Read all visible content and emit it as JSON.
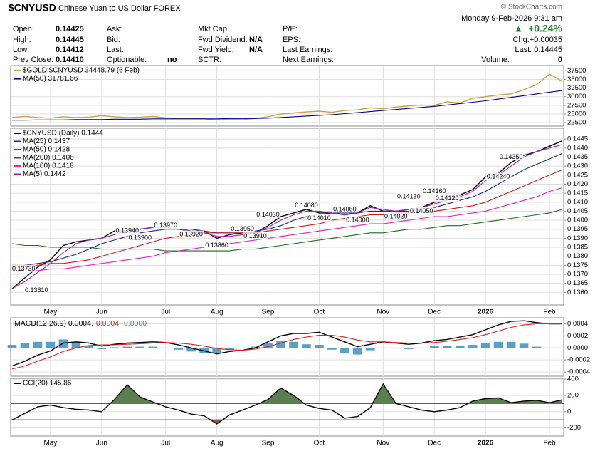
{
  "header": {
    "title": "$CNYUSD",
    "subtitle": "Chinese Yuan to US Dollar FOREX",
    "brand": "© StockCharts.com",
    "date": "Monday  9-Feb-2026  9:31 am",
    "change": "+0.24%",
    "chg": "Chg:+0.00035",
    "last": "Last: 0.14445",
    "volume_label": "Volume:",
    "volume": "0"
  },
  "quote_columns": [
    [
      {
        "label": "Open:",
        "value": "0.14425"
      },
      {
        "label": "High:",
        "value": "0.14445"
      },
      {
        "label": "Low:",
        "value": "0.14412"
      },
      {
        "label": "Prev Close:",
        "value": "0.14410"
      }
    ],
    [
      {
        "label": "Ask:"
      },
      {
        "label": "Bid:"
      },
      {
        "label": "Last:"
      },
      {
        "label": "Optionable:",
        "value": "no"
      }
    ],
    [
      {
        "label": "Mkt Cap:"
      },
      {
        "label": "Fwd Dividend:",
        "value": "N/A"
      },
      {
        "label": "Fwd Yield:",
        "value": "N/A"
      },
      {
        "label": "SCTR:"
      }
    ],
    [
      {
        "label": "P/E:"
      },
      {
        "label": "EPS:"
      },
      {
        "label": "Last Earnings:"
      },
      {
        "label": "Next Earnings:"
      }
    ]
  ],
  "chart_data": [
    {
      "type": "line",
      "grid": true,
      "ylim": [
        21500,
        39000
      ],
      "yticks": [
        37500,
        35000,
        32500,
        30000,
        27500,
        25000,
        22500
      ],
      "series": [
        {
          "name": "$GOLD:$CNYUSD 34448.79 (6 Feb)",
          "color": "#c9a042",
          "values": [
            24000,
            24300,
            24000,
            23800,
            24200,
            24000,
            24100,
            24500,
            24200,
            24000,
            24100,
            24300,
            23900,
            23700,
            23800,
            23600,
            23300,
            23500,
            23400,
            23700,
            24200,
            25000,
            25300,
            25600,
            25800,
            25500,
            26000,
            26200,
            26800,
            26500,
            27000,
            27300,
            27600,
            27500,
            28500,
            28200,
            29500,
            30000,
            30500,
            30800,
            32000,
            33500,
            36500,
            34448.79
          ]
        },
        {
          "name": "MA(50) 31781.66",
          "color": "#000080",
          "values": [
            23200,
            23200,
            23300,
            23300,
            23300,
            23400,
            23400,
            23400,
            23500,
            23500,
            23500,
            23600,
            23600,
            23600,
            23600,
            23600,
            23600,
            23700,
            23700,
            23700,
            23800,
            24000,
            24200,
            24400,
            24600,
            24800,
            25100,
            25400,
            25700,
            26000,
            26300,
            26600,
            26900,
            27200,
            27600,
            28000,
            28400,
            28800,
            29300,
            29800,
            30300,
            30800,
            31300,
            31781.66
          ]
        }
      ]
    },
    {
      "type": "line",
      "grid": true,
      "ylim": [
        0.1353,
        0.1451
      ],
      "categories": [
        null,
        null,
        null,
        "May",
        null,
        null,
        null,
        "Jun",
        null,
        null,
        null,
        null,
        "Jul",
        null,
        null,
        null,
        "Aug",
        null,
        null,
        null,
        "Sep",
        null,
        null,
        null,
        "Oct",
        null,
        null,
        null,
        null,
        "Nov",
        null,
        null,
        null,
        "Dec",
        null,
        null,
        null,
        "2026",
        null,
        null,
        null,
        null,
        "Feb",
        null
      ],
      "yticks": [
        {
          "value": 0.1445,
          "label": "0.1445"
        },
        {
          "value": 0.144,
          "label": "0.1440"
        },
        {
          "value": 0.1435,
          "label": "0.1435"
        },
        {
          "value": 0.143,
          "label": "0.1430"
        },
        {
          "value": 0.1425,
          "label": "0.1425"
        },
        {
          "value": 0.142,
          "label": "0.1420"
        },
        {
          "value": 0.1415,
          "label": "0.1415"
        },
        {
          "value": 0.141,
          "label": "0.1410"
        },
        {
          "value": 0.1405,
          "label": "0.1405"
        },
        {
          "value": 0.14,
          "label": "0.1400"
        },
        {
          "value": 0.1395,
          "label": "0.1395"
        },
        {
          "value": 0.139,
          "label": "0.1390"
        },
        {
          "value": 0.1385,
          "label": "0.1385"
        },
        {
          "value": 0.138,
          "label": "0.1380"
        },
        {
          "value": 0.1375,
          "label": "0.1375"
        },
        {
          "value": 0.137,
          "label": "0.1370"
        },
        {
          "value": 0.1365,
          "label": "0.1365"
        },
        {
          "value": 0.136,
          "label": "0.1360"
        }
      ],
      "series": [
        {
          "name": "$CNYUSD (Daily) 0.1444",
          "color": "#000000",
          "values": [
            0.1362,
            0.1368,
            0.1374,
            0.1378,
            0.1386,
            0.1388,
            0.1389,
            0.139,
            0.1394,
            0.1394,
            0.1395,
            0.1396,
            0.1396,
            0.1395,
            0.1394,
            0.1394,
            0.139,
            0.1392,
            0.1393,
            0.1393,
            0.1397,
            0.1402,
            0.1404,
            0.1406,
            0.1404,
            0.1404,
            0.1403,
            0.1404,
            0.1408,
            0.1405,
            0.1405,
            0.1406,
            0.1407,
            0.141,
            0.1411,
            0.1414,
            0.1417,
            0.1424,
            0.1426,
            0.1432,
            0.1436,
            0.1438,
            0.1441,
            0.1444
          ]
        },
        {
          "name": "MA(25) 0.1437",
          "color": "#1a2a8c",
          "values": [
            0.1374,
            0.1375,
            0.1376,
            0.1377,
            0.1379,
            0.1381,
            0.1384,
            0.1387,
            0.1389,
            0.1391,
            0.1393,
            0.1394,
            0.1395,
            0.1395,
            0.1395,
            0.1394,
            0.1393,
            0.1393,
            0.1393,
            0.1394,
            0.1395,
            0.1397,
            0.14,
            0.1402,
            0.1403,
            0.1404,
            0.1404,
            0.1404,
            0.1405,
            0.1405,
            0.1405,
            0.1405,
            0.1406,
            0.1407,
            0.1409,
            0.1411,
            0.1413,
            0.1416,
            0.142,
            0.1424,
            0.1428,
            0.1431,
            0.1434,
            0.1437
          ]
        },
        {
          "name": "MA(50) 0.1428",
          "color": "#cc1a1a",
          "values": [
            0.1375,
            0.1375,
            0.1375,
            0.1376,
            0.1376,
            0.1377,
            0.1378,
            0.138,
            0.1382,
            0.1384,
            0.1386,
            0.1388,
            0.139,
            0.1391,
            0.1392,
            0.1393,
            0.1393,
            0.1393,
            0.1393,
            0.1393,
            0.1394,
            0.1395,
            0.1396,
            0.1397,
            0.1398,
            0.14,
            0.1401,
            0.1402,
            0.1403,
            0.1403,
            0.1404,
            0.1404,
            0.1405,
            0.1405,
            0.1406,
            0.1407,
            0.1408,
            0.141,
            0.1413,
            0.1416,
            0.1419,
            0.1422,
            0.1425,
            0.1428
          ]
        },
        {
          "name": "MA(200) 0.1406",
          "color": "#1f6b1f",
          "values": [
            0.1387,
            0.1386,
            0.1386,
            0.1385,
            0.1385,
            0.1385,
            0.1385,
            0.1384,
            0.1384,
            0.1384,
            0.1384,
            0.1384,
            0.1383,
            0.1383,
            0.1383,
            0.1383,
            0.1383,
            0.1383,
            0.1384,
            0.1384,
            0.1385,
            0.1386,
            0.1387,
            0.1388,
            0.1389,
            0.139,
            0.1391,
            0.1392,
            0.1393,
            0.1393,
            0.1394,
            0.1395,
            0.1395,
            0.1396,
            0.1397,
            0.1397,
            0.1398,
            0.1399,
            0.14,
            0.1401,
            0.1402,
            0.1403,
            0.1404,
            0.1406
          ]
        },
        {
          "name": "MA(100) 0.1418",
          "color": "#e020d0",
          "values": [
            0.1372,
            0.1372,
            0.1372,
            0.1373,
            0.1373,
            0.1374,
            0.1375,
            0.1376,
            0.1377,
            0.1378,
            0.1379,
            0.138,
            0.1382,
            0.1383,
            0.1384,
            0.1385,
            0.1386,
            0.1387,
            0.1388,
            0.1389,
            0.139,
            0.1391,
            0.1392,
            0.1393,
            0.1394,
            0.1395,
            0.1396,
            0.1397,
            0.1398,
            0.1398,
            0.1399,
            0.14,
            0.1401,
            0.1402,
            0.1402,
            0.1403,
            0.1404,
            0.1405,
            0.1407,
            0.1409,
            0.1411,
            0.1413,
            0.1416,
            0.1418
          ]
        },
        {
          "name": "MA(5) 0.1442",
          "color": "#9a22b8",
          "values": [
            0.1362,
            0.1366,
            0.1371,
            0.1376,
            0.1382,
            0.1387,
            0.1389,
            0.139,
            0.1392,
            0.1394,
            0.1395,
            0.1396,
            0.1396,
            0.1395,
            0.1394,
            0.1393,
            0.1391,
            0.1391,
            0.1392,
            0.1393,
            0.1396,
            0.14,
            0.1403,
            0.1405,
            0.1405,
            0.1404,
            0.1403,
            0.1404,
            0.1407,
            0.1406,
            0.1405,
            0.1406,
            0.1407,
            0.1409,
            0.1411,
            0.1413,
            0.1416,
            0.1422,
            0.1425,
            0.143,
            0.1435,
            0.1438,
            0.144,
            0.1442
          ]
        }
      ],
      "annotations": [
        {
          "label": "0.13730",
          "value": 0.1373,
          "x": 0
        },
        {
          "label": "0.13610",
          "value": 0.1361,
          "x": 1
        },
        {
          "label": "0.13940",
          "value": 0.1394,
          "x": 9
        },
        {
          "label": "0.13970",
          "value": 0.1397,
          "x": 12
        },
        {
          "label": "0.13900",
          "value": 0.139,
          "x": 10
        },
        {
          "label": "0.13920",
          "value": 0.1392,
          "x": 14
        },
        {
          "label": "0.13950",
          "value": 0.1395,
          "x": 18
        },
        {
          "label": "0.13860",
          "value": 0.1386,
          "x": 16
        },
        {
          "label": "0.13910",
          "value": 0.1391,
          "x": 19
        },
        {
          "label": "0.14030",
          "value": 0.1403,
          "x": 20
        },
        {
          "label": "0.14080",
          "value": 0.1408,
          "x": 23
        },
        {
          "label": "0.14010",
          "value": 0.1401,
          "x": 24
        },
        {
          "label": "0.14000",
          "value": 0.14,
          "x": 27
        },
        {
          "label": "0.14060",
          "value": 0.1406,
          "x": 26
        },
        {
          "label": "0.14130",
          "value": 0.1413,
          "x": 31
        },
        {
          "label": "0.14020",
          "value": 0.1402,
          "x": 30
        },
        {
          "label": "0.14050",
          "value": 0.1405,
          "x": 32
        },
        {
          "label": "0.14120",
          "value": 0.1412,
          "x": 34
        },
        {
          "label": "0.14160",
          "value": 0.1416,
          "x": 33
        },
        {
          "label": "0.14240",
          "value": 0.1424,
          "x": 38
        },
        {
          "label": "0.14350",
          "value": 0.1435,
          "x": 39
        }
      ]
    },
    {
      "type": "line",
      "grid": true,
      "legend_inline": true,
      "ylim": [
        -0.00047,
        0.0005
      ],
      "yticks": [
        {
          "value": 0.0004,
          "label": "0.0004"
        },
        {
          "value": 0.0002,
          "label": "0.0002"
        },
        {
          "value": 0,
          "label": "0.0000"
        },
        {
          "value": -0.0002,
          "label": "-0.0002"
        },
        {
          "value": -0.0004,
          "label": "-0.0004"
        }
      ],
      "series": [
        {
          "name": "MACD(12,26,9) 0.0004,",
          "color": "#000000",
          "values": [
            -0.0003,
            -0.00022,
            -0.00012,
            -5e-05,
            8e-05,
            0.0001,
            8e-05,
            3e-05,
            6e-05,
            8e-05,
            9e-05,
            0.0001,
            9e-05,
            5e-05,
            0,
            -5e-05,
            -0.0001,
            -6e-05,
            -4e-05,
            0,
            0.0001,
            0.0002,
            0.00024,
            0.00024,
            0.00026,
            0.00018,
            0.0001,
            2e-05,
            6e-05,
            0.0001,
            8e-05,
            6e-05,
            8e-05,
            0.00012,
            0.00014,
            0.00018,
            0.00022,
            0.0003,
            0.00038,
            0.00044,
            0.00045,
            0.00042,
            0.0004,
            0.0004
          ]
        },
        {
          "name": "0.0004,",
          "color": "#e02020",
          "values": [
            -0.00035,
            -0.0003,
            -0.00022,
            -0.00015,
            -6e-05,
            0,
            4e-05,
            5e-05,
            5e-05,
            6e-05,
            7e-05,
            8e-05,
            9e-05,
            8e-05,
            6e-05,
            3e-05,
            -1e-05,
            -3e-05,
            -4e-05,
            -2e-05,
            2e-05,
            8e-05,
            0.00014,
            0.00018,
            0.00021,
            0.00021,
            0.00018,
            0.00013,
            0.0001,
            0.0001,
            9e-05,
            8e-05,
            8e-05,
            9e-05,
            0.00011,
            0.00014,
            0.00017,
            0.00022,
            0.00028,
            0.00034,
            0.00038,
            0.0004,
            0.0004,
            0.0004
          ]
        },
        {
          "name": "0.0000",
          "color": "#3a8fc0",
          "style": "bar",
          "values": [
            5e-05,
            8e-05,
            0.0001,
            0.0001,
            0.00014,
            0.0001,
            4e-05,
            -2e-05,
            1e-05,
            2e-05,
            2e-05,
            2e-05,
            0,
            -3e-05,
            -6e-05,
            -8e-05,
            -9e-05,
            -3e-05,
            0,
            2e-05,
            8e-05,
            0.00012,
            0.0001,
            6e-05,
            5e-05,
            -3e-05,
            -8e-05,
            -0.00011,
            -4e-05,
            0,
            -1e-05,
            -2e-05,
            0,
            3e-05,
            3e-05,
            4e-05,
            5e-05,
            8e-05,
            0.0001,
            0.0001,
            7e-05,
            2e-05,
            0,
            0
          ]
        }
      ]
    },
    {
      "type": "line",
      "grid": true,
      "ylim": [
        -300,
        410
      ],
      "yticks": [
        400,
        200,
        0,
        -200
      ],
      "reference_lines": [
        100,
        -100
      ],
      "fill_colors": [
        "#5c7f4f",
        "#8b5a3c"
      ],
      "categories": [
        null,
        null,
        null,
        "May",
        null,
        null,
        null,
        "Jun",
        null,
        null,
        null,
        null,
        "Jul",
        null,
        null,
        null,
        "Aug",
        null,
        null,
        null,
        "Sep",
        null,
        null,
        null,
        "Oct",
        null,
        null,
        null,
        null,
        "Nov",
        null,
        null,
        null,
        "Dec",
        null,
        null,
        null,
        "2026",
        null,
        null,
        null,
        null,
        "Feb",
        null
      ],
      "series": [
        {
          "name": "CCI(20) 145.86",
          "color": "#000000",
          "values": [
            -100,
            -20,
            60,
            80,
            50,
            30,
            20,
            0,
            150,
            330,
            180,
            120,
            60,
            20,
            -30,
            -50,
            -150,
            -40,
            20,
            80,
            150,
            290,
            200,
            80,
            40,
            20,
            -80,
            -60,
            50,
            340,
            100,
            60,
            20,
            0,
            20,
            50,
            130,
            160,
            170,
            110,
            130,
            140,
            110,
            145.86
          ]
        }
      ]
    }
  ]
}
